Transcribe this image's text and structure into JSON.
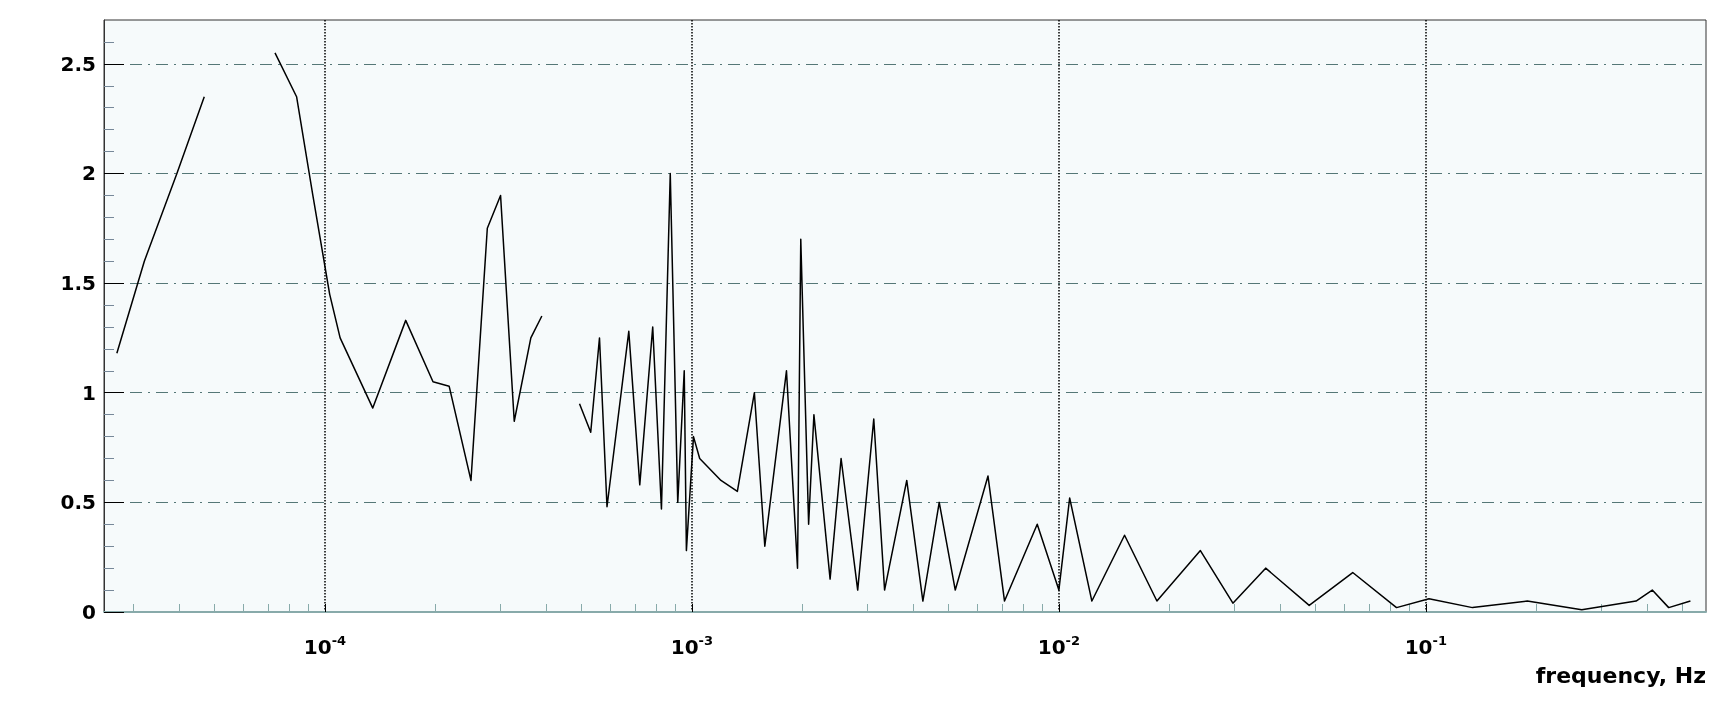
{
  "chart_data": {
    "type": "line",
    "xlabel": "frequency, Hz",
    "log": "x",
    "grid": true,
    "marker": "none",
    "line_style": "solid",
    "xlim": [
      2.5e-05,
      0.58
    ],
    "ylim": [
      0,
      2.7
    ],
    "xticks": [
      {
        "value": 0.0001,
        "label": "10$^{-4}$"
      },
      {
        "value": 0.001,
        "label": "10$^{-3}$"
      },
      {
        "value": 0.01,
        "label": "10$^{-2}$"
      },
      {
        "value": 0.1,
        "label": "10$^{-1}$"
      }
    ],
    "yticks": [
      0,
      0.5,
      1,
      1.5,
      2,
      2.5
    ],
    "series": [
      {
        "color": "#000000",
        "x": [
          2.71e-05,
          3.22e-05,
          3.95e-05,
          4.69e-05,
          5.19e-05,
          6.37e-05,
          7.31e-05,
          8.37e-05,
          9.27e-05,
          0.000103,
          0.00011,
          0.000135,
          0.000166,
          0.000197,
          0.000218,
          0.00025,
          0.000277,
          0.000301,
          0.000328,
          0.000364,
          0.00039,
          0.000423,
          0.000456,
          0.000494,
          0.00053,
          0.00056,
          0.000587,
          0.000673,
          0.000721,
          0.000782,
          0.000826,
          0.000873,
          0.000915,
          0.000953,
          0.000966,
          0.00101,
          0.00105,
          0.0012,
          0.00133,
          0.00148,
          0.00158,
          0.00181,
          0.00194,
          0.00198,
          0.00208,
          0.00215,
          0.00238,
          0.00255,
          0.00283,
          0.00313,
          0.00335,
          0.00385,
          0.00426,
          0.00472,
          0.00522,
          0.00641,
          0.00711,
          0.00873,
          0.01,
          0.0107,
          0.0123,
          0.0151,
          0.0185,
          0.0243,
          0.0298,
          0.0366,
          0.0481,
          0.0632,
          0.0832,
          0.102,
          0.134,
          0.189,
          0.266,
          0.374,
          0.414,
          0.459,
          0.526
        ],
        "values": [
          1.18,
          1.6,
          2.0,
          2.35,
          null,
          null,
          2.55,
          2.35,
          1.9,
          1.45,
          1.25,
          0.93,
          1.33,
          1.05,
          1.03,
          0.6,
          1.75,
          1.9,
          0.87,
          1.25,
          1.35,
          null,
          null,
          0.95,
          0.82,
          1.25,
          0.48,
          1.28,
          0.58,
          1.3,
          0.47,
          2.0,
          0.5,
          1.1,
          0.28,
          0.8,
          0.7,
          0.6,
          0.55,
          1.0,
          0.3,
          1.1,
          0.2,
          1.7,
          0.4,
          0.9,
          0.15,
          0.7,
          0.1,
          0.88,
          0.1,
          0.6,
          0.05,
          0.5,
          0.1,
          0.62,
          0.05,
          0.4,
          0.1,
          0.52,
          0.05,
          0.35,
          0.05,
          0.28,
          0.04,
          0.2,
          0.03,
          0.18,
          0.02,
          0.06,
          0.02,
          0.05,
          0.01,
          0.05,
          0.1,
          0.02,
          0.05
        ]
      }
    ]
  }
}
